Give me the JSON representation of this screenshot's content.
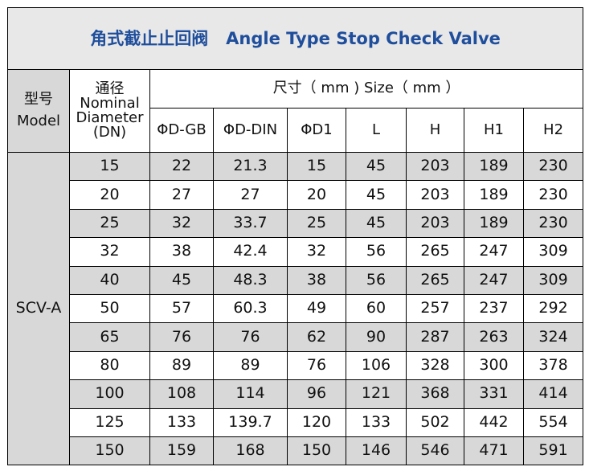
{
  "title": "角式截止止回阀   Angle Type Stop Check Valve",
  "header": {
    "model_cn": "型号",
    "model_en": "Model",
    "dn_cn": "通径",
    "dn_en1": "Nominal",
    "dn_en2": "Diameter",
    "dn_en3": "(DN)",
    "size": "尺寸（ mm ) Size（ mm ）",
    "columns": [
      "ΦD-GB",
      "ΦD-DIN",
      "ΦD1",
      "L",
      "H",
      "H1",
      "H2"
    ]
  },
  "model": "SCV-A",
  "rows": [
    [
      "15",
      "22",
      "21.3",
      "15",
      "45",
      "203",
      "189",
      "230"
    ],
    [
      "20",
      "27",
      "27",
      "20",
      "45",
      "203",
      "189",
      "230"
    ],
    [
      "25",
      "32",
      "33.7",
      "25",
      "45",
      "203",
      "189",
      "230"
    ],
    [
      "32",
      "38",
      "42.4",
      "32",
      "56",
      "265",
      "247",
      "309"
    ],
    [
      "40",
      "45",
      "48.3",
      "38",
      "56",
      "265",
      "247",
      "309"
    ],
    [
      "50",
      "57",
      "60.3",
      "49",
      "60",
      "257",
      "237",
      "292"
    ],
    [
      "65",
      "76",
      "76",
      "62",
      "90",
      "287",
      "263",
      "324"
    ],
    [
      "80",
      "89",
      "89",
      "76",
      "106",
      "328",
      "300",
      "378"
    ],
    [
      "100",
      "108",
      "114",
      "96",
      "121",
      "368",
      "331",
      "414"
    ],
    [
      "125",
      "133",
      "139.7",
      "120",
      "133",
      "502",
      "442",
      "554"
    ],
    [
      "150",
      "159",
      "168",
      "150",
      "146",
      "546",
      "471",
      "591"
    ]
  ],
  "colors": {
    "title": "#1f4e9c",
    "shade": "#d8d8d8",
    "title_bg": "#e8e8e8"
  }
}
